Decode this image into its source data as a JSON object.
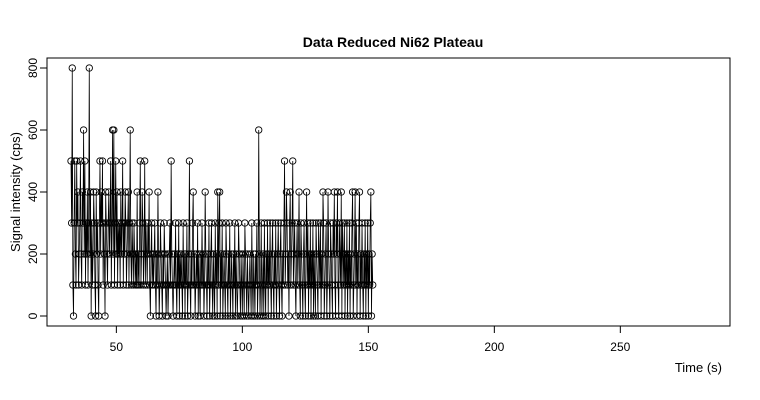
{
  "chart_data": {
    "type": "line",
    "title": "Data Reduced Ni62 Plateau",
    "xlabel": "Time (s)",
    "ylabel": "Signal intensity (cps)",
    "xlim": [
      32,
      284
    ],
    "ylim": [
      0,
      800
    ],
    "xticks": [
      50,
      100,
      150,
      200,
      250
    ],
    "yticks": [
      0,
      200,
      400,
      600,
      800
    ],
    "grid": false,
    "legend": "none",
    "line_color": "#000000",
    "marker": "open-circle",
    "sampling_interval_s": 0.25,
    "series": [
      {
        "x_start": 32,
        "x_step": 0.25,
        "values": [
          500,
          300,
          800,
          100,
          0,
          300,
          500,
          200,
          100,
          500,
          300,
          400,
          100,
          200,
          300,
          500,
          200,
          100,
          400,
          300,
          600,
          200,
          500,
          100,
          300,
          200,
          400,
          100,
          300,
          800,
          200,
          400,
          0,
          300,
          100,
          200,
          400,
          300,
          100,
          0,
          400,
          200,
          300,
          100,
          0,
          300,
          500,
          200,
          400,
          300,
          500,
          100,
          300,
          200,
          0,
          400,
          300,
          200,
          100,
          300,
          400,
          200,
          300,
          500,
          100,
          300,
          600,
          200,
          600,
          100,
          300,
          500,
          200,
          400,
          100,
          300,
          200,
          300,
          100,
          400,
          200,
          300,
          500,
          100,
          300,
          200,
          400,
          300,
          100,
          200,
          300,
          400,
          100,
          300,
          600,
          200,
          100,
          300,
          200,
          100,
          300,
          200,
          100,
          200,
          100,
          400,
          100,
          200,
          100,
          300,
          500,
          100,
          200,
          400,
          300,
          100,
          200,
          500,
          100,
          300,
          200,
          100,
          300,
          200,
          400,
          100,
          0,
          200,
          300,
          100,
          200,
          100,
          200,
          300,
          100,
          0,
          200,
          100,
          400,
          200,
          0,
          100,
          300,
          200,
          100,
          0,
          200,
          100,
          300,
          200,
          100,
          0,
          100,
          200,
          0,
          100,
          200,
          300,
          100,
          500,
          200,
          100,
          0,
          100,
          200,
          100,
          300,
          100,
          0,
          200,
          100,
          300,
          0,
          200,
          100,
          200,
          100,
          0,
          300,
          100,
          200,
          0,
          200,
          100,
          300,
          0,
          100,
          200,
          500,
          100,
          0,
          200,
          100,
          300,
          400,
          100,
          200,
          0,
          100,
          200,
          100,
          300,
          0,
          200,
          100,
          0,
          200,
          100,
          300,
          100,
          200,
          0,
          100,
          400,
          200,
          100,
          0,
          200,
          100,
          300,
          0,
          100,
          200,
          300,
          100,
          0,
          200,
          100,
          0,
          300,
          100,
          200,
          0,
          400,
          100,
          300,
          400,
          0,
          200,
          100,
          300,
          0,
          100,
          200,
          100,
          0,
          300,
          200,
          100,
          0,
          200,
          100,
          300,
          0,
          100,
          200,
          100,
          0,
          200,
          100,
          300,
          0,
          200,
          100,
          0,
          100,
          300,
          200,
          100,
          0,
          200,
          100,
          0,
          200,
          100,
          0,
          300,
          200,
          100,
          0,
          200,
          100,
          0,
          100,
          200,
          100,
          0,
          300,
          100,
          0,
          200,
          100,
          0,
          200,
          100,
          300,
          0,
          100,
          600,
          200,
          0,
          100,
          300,
          0,
          100,
          200,
          0,
          300,
          100,
          0,
          200,
          100,
          300,
          0,
          200,
          100,
          300,
          100,
          0,
          200,
          300,
          100,
          0,
          200,
          100,
          300,
          0,
          100,
          200,
          300,
          100,
          0,
          200,
          300,
          100,
          0,
          200,
          100,
          300,
          500,
          100,
          200,
          400,
          300,
          100,
          200,
          0,
          300,
          400,
          100,
          200,
          300,
          500,
          100,
          200,
          300,
          100,
          0,
          200,
          300,
          100,
          200,
          400,
          100,
          0,
          300,
          200,
          100,
          0,
          200,
          300,
          100,
          0,
          200,
          400,
          100,
          300,
          0,
          200,
          100,
          300,
          0,
          200,
          100,
          300,
          0,
          200,
          100,
          0,
          300,
          200,
          100,
          0,
          300,
          200,
          100,
          300,
          0,
          200,
          100,
          400,
          300,
          0,
          100,
          200,
          300,
          0,
          100,
          400,
          200,
          100,
          0,
          300,
          200,
          100,
          0,
          300,
          200,
          400,
          100,
          0,
          300,
          200,
          400,
          100,
          0,
          300,
          200,
          100,
          400,
          0,
          300,
          200,
          100,
          300,
          0,
          200,
          100,
          300,
          0,
          200,
          100,
          300,
          0,
          200,
          100,
          300,
          400,
          0,
          100,
          200,
          400,
          100,
          300,
          0,
          200,
          100,
          300,
          400,
          0,
          200,
          100,
          300,
          100,
          0,
          200,
          100,
          300,
          0,
          200,
          100,
          300,
          0,
          200,
          100,
          300,
          400,
          0,
          200,
          100
        ]
      }
    ]
  }
}
